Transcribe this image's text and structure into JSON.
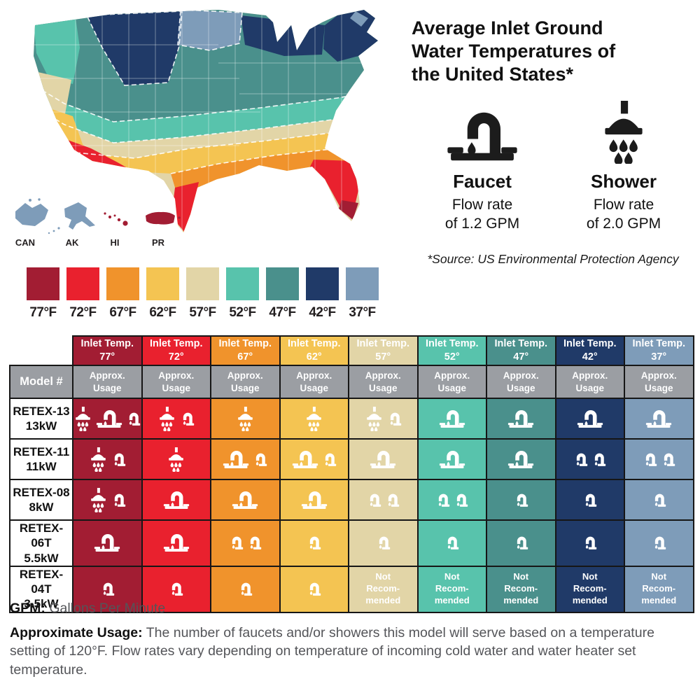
{
  "colors": {
    "t77": "#A21D33",
    "t72": "#E9212E",
    "t67": "#F0932C",
    "t62": "#F4C452",
    "t57": "#E2D5A7",
    "t52": "#58C3AC",
    "t47": "#4A908C",
    "t42": "#203A68",
    "t37": "#7E9CB9",
    "header_gray": "#9B9EA3",
    "ink": "#1A1A1A",
    "body_gray": "#545559"
  },
  "map": {
    "insets": [
      {
        "label": "CAN",
        "key": "t37"
      },
      {
        "label": "AK",
        "key": "t37"
      },
      {
        "label": "HI",
        "key": "t77"
      },
      {
        "label": "PR",
        "key": "t77"
      }
    ]
  },
  "legend": [
    {
      "label": "77°F",
      "key": "t77"
    },
    {
      "label": "72°F",
      "key": "t72"
    },
    {
      "label": "67°F",
      "key": "t67"
    },
    {
      "label": "62°F",
      "key": "t62"
    },
    {
      "label": "57°F",
      "key": "t57"
    },
    {
      "label": "52°F",
      "key": "t52"
    },
    {
      "label": "47°F",
      "key": "t47"
    },
    {
      "label": "42°F",
      "key": "t42"
    },
    {
      "label": "37°F",
      "key": "t37"
    }
  ],
  "panel": {
    "title_lines": [
      "Average Inlet Ground",
      "Water Temperatures of",
      "the United States*"
    ],
    "fixtures": [
      {
        "label": "Faucet",
        "flow_line1": "Flow rate",
        "flow_line2": "of 1.2 GPM"
      },
      {
        "label": "Shower",
        "flow_line1": "Flow rate",
        "flow_line2": "of 2.0 GPM"
      }
    ],
    "source": "*Source: US Environmental Protection Agency"
  },
  "table": {
    "header_prefix": "Inlet Temp.",
    "model_header": "Model #",
    "subheader_lines": [
      "Approx.",
      "Usage"
    ],
    "not_recommended_lines": [
      "Not",
      "Recom-",
      "mended"
    ],
    "columns": [
      {
        "temp": "77°",
        "key": "t77"
      },
      {
        "temp": "72°",
        "key": "t72"
      },
      {
        "temp": "67°",
        "key": "t67"
      },
      {
        "temp": "62°",
        "key": "t62"
      },
      {
        "temp": "57°",
        "key": "t57"
      },
      {
        "temp": "52°",
        "key": "t52"
      },
      {
        "temp": "47°",
        "key": "t47"
      },
      {
        "temp": "42°",
        "key": "t42"
      },
      {
        "temp": "37°",
        "key": "t37"
      }
    ],
    "rows": [
      {
        "model": "RETEX-13",
        "kw": "13kW",
        "cells": [
          {
            "icons": [
              "shower",
              "faucet",
              "faucet-sm"
            ]
          },
          {
            "icons": [
              "shower",
              "faucet-sm"
            ]
          },
          {
            "icons": [
              "shower"
            ]
          },
          {
            "icons": [
              "shower"
            ]
          },
          {
            "icons": [
              "shower",
              "faucet-sm"
            ]
          },
          {
            "icons": [
              "faucet"
            ]
          },
          {
            "icons": [
              "faucet"
            ]
          },
          {
            "icons": [
              "faucet"
            ]
          },
          {
            "icons": [
              "faucet"
            ]
          }
        ]
      },
      {
        "model": "RETEX-11",
        "kw": "11kW",
        "cells": [
          {
            "icons": [
              "shower",
              "faucet-sm"
            ]
          },
          {
            "icons": [
              "shower"
            ]
          },
          {
            "icons": [
              "faucet",
              "faucet-sm"
            ]
          },
          {
            "icons": [
              "faucet",
              "faucet-sm"
            ]
          },
          {
            "icons": [
              "faucet"
            ]
          },
          {
            "icons": [
              "faucet"
            ]
          },
          {
            "icons": [
              "faucet"
            ]
          },
          {
            "icons": [
              "faucet-sm",
              "faucet-sm"
            ]
          },
          {
            "icons": [
              "faucet-sm",
              "faucet-sm"
            ]
          }
        ]
      },
      {
        "model": "RETEX-08",
        "kw": "8kW",
        "cells": [
          {
            "icons": [
              "shower",
              "faucet-sm"
            ]
          },
          {
            "icons": [
              "faucet"
            ]
          },
          {
            "icons": [
              "faucet"
            ]
          },
          {
            "icons": [
              "faucet"
            ]
          },
          {
            "icons": [
              "faucet-sm",
              "faucet-sm"
            ]
          },
          {
            "icons": [
              "faucet-sm",
              "faucet-sm"
            ]
          },
          {
            "icons": [
              "faucet-sm"
            ]
          },
          {
            "icons": [
              "faucet-sm"
            ]
          },
          {
            "icons": [
              "faucet-sm"
            ]
          }
        ]
      },
      {
        "model": "RETEX-06T",
        "kw": "5.5kW",
        "cells": [
          {
            "icons": [
              "faucet"
            ]
          },
          {
            "icons": [
              "faucet"
            ]
          },
          {
            "icons": [
              "faucet-sm",
              "faucet-sm"
            ]
          },
          {
            "icons": [
              "faucet-sm"
            ]
          },
          {
            "icons": [
              "faucet-sm"
            ]
          },
          {
            "icons": [
              "faucet-sm"
            ]
          },
          {
            "icons": [
              "faucet-sm"
            ]
          },
          {
            "icons": [
              "faucet-sm"
            ]
          },
          {
            "icons": [
              "faucet-sm"
            ]
          }
        ]
      },
      {
        "model": "RETEX-04T",
        "kw": "3.5kW",
        "cells": [
          {
            "icons": [
              "faucet-sm"
            ]
          },
          {
            "icons": [
              "faucet-sm"
            ]
          },
          {
            "icons": [
              "faucet-sm"
            ]
          },
          {
            "icons": [
              "faucet-sm"
            ]
          },
          {
            "nr": true
          },
          {
            "nr": true
          },
          {
            "nr": true
          },
          {
            "nr": true
          },
          {
            "nr": true
          }
        ]
      }
    ]
  },
  "footer": {
    "gpm_label": "GPM:",
    "gpm_text": " Gallons Per Minute",
    "usage_label": "Approximate Usage:",
    "usage_text": " The number of faucets and/or showers this model will serve based on a temperature setting of 120°F. Flow rates vary depending on temperature of incoming cold water and water heater set temperature."
  }
}
